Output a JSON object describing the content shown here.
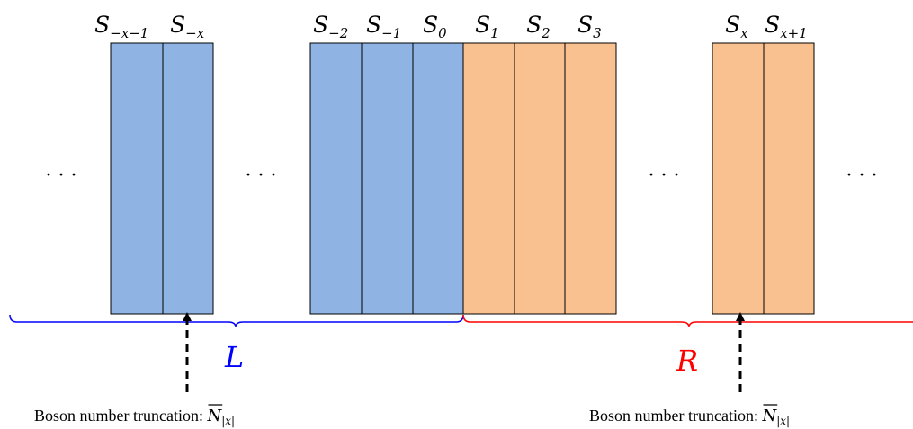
{
  "colors": {
    "blue_fill": "#8fb4e3",
    "orange_fill": "#f9c090",
    "cell_stroke": "#000000",
    "left_brace": "#0000ff",
    "right_brace": "#ff0000"
  },
  "cells": {
    "s_mx_m1": {
      "base": "S",
      "sub": "−x−1"
    },
    "s_mx": {
      "base": "S",
      "sub": "−x"
    },
    "s_m2": {
      "base": "S",
      "sub": "−2"
    },
    "s_m1": {
      "base": "S",
      "sub": "−1"
    },
    "s_0": {
      "base": "S",
      "sub": "0"
    },
    "s_1": {
      "base": "S",
      "sub": "1"
    },
    "s_2": {
      "base": "S",
      "sub": "2"
    },
    "s_3": {
      "base": "S",
      "sub": "3"
    },
    "s_x": {
      "base": "S",
      "sub": "x"
    },
    "s_x_p1": {
      "base": "S",
      "sub": "x+1"
    }
  },
  "ellipsis": "· · ·",
  "braces": {
    "left_label": "L",
    "right_label": "R"
  },
  "captions": {
    "text": "Boson number truncation: ",
    "symbol": "N",
    "subscript": "|x|"
  }
}
